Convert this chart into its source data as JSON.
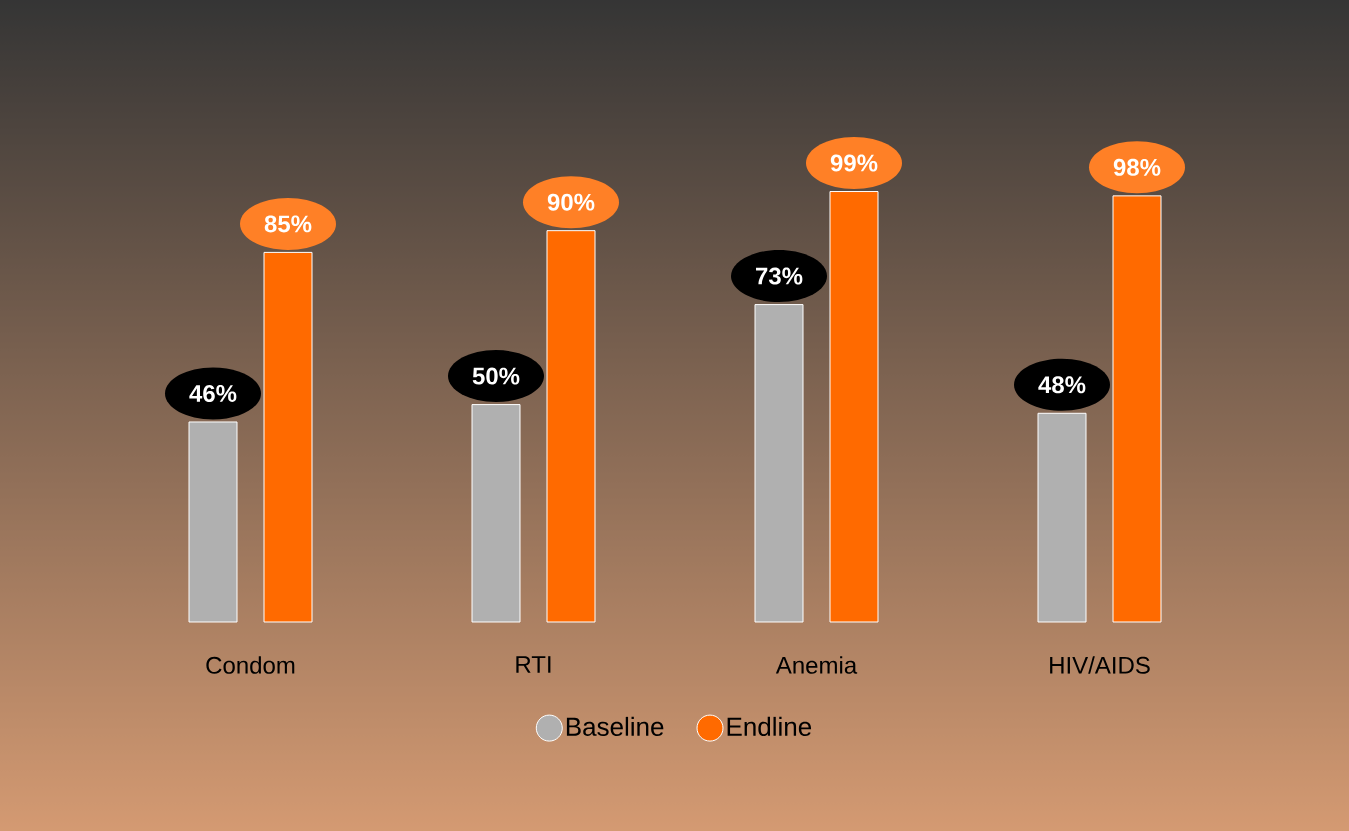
{
  "chart_data": {
    "type": "bar",
    "categories": [
      "Condom",
      "RTI",
      "Anemia",
      "HIV/AIDS"
    ],
    "series": [
      {
        "name": "Baseline",
        "color": "#b0b0b0",
        "values": [
          46,
          50,
          73,
          48
        ],
        "value_labels": [
          "46%",
          "50%",
          "73%",
          "48%"
        ]
      },
      {
        "name": "Endline",
        "color": "#ff6a00",
        "values": [
          85,
          90,
          99,
          98
        ],
        "value_labels": [
          "85%",
          "90%",
          "99%",
          "98%"
        ]
      }
    ],
    "legend": "bottom",
    "tick_labels": "x"
  }
}
